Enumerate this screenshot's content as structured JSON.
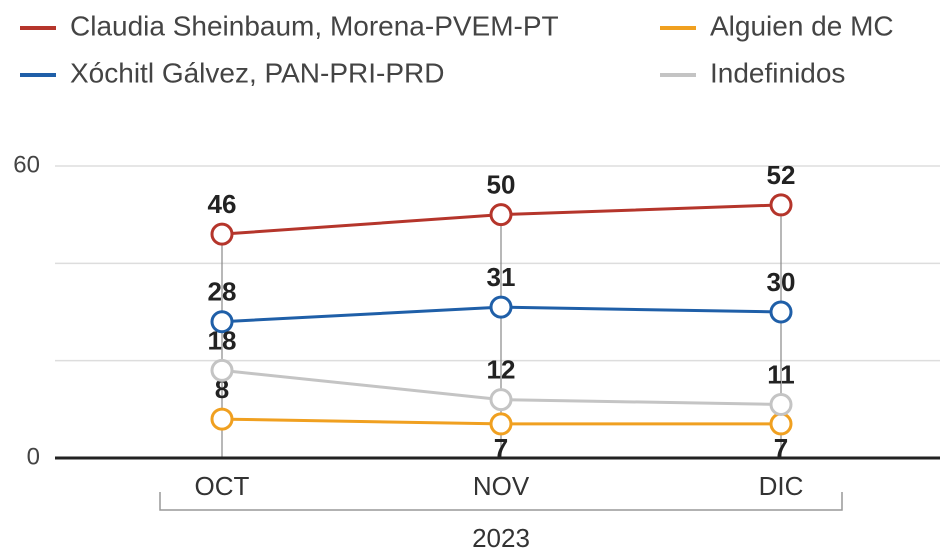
{
  "chart_data": {
    "type": "line",
    "categories": [
      "OCT",
      "NOV",
      "DIC"
    ],
    "xlabel": "2023",
    "series": [
      {
        "name": "Claudia Sheinbaum, Morena-PVEM-PT",
        "color": "#b5352b",
        "values": [
          46,
          50,
          52
        ]
      },
      {
        "name": "Xóchitl Gálvez, PAN-PRI-PRD",
        "color": "#1f5fa8",
        "values": [
          28,
          31,
          30
        ]
      },
      {
        "name": "Alguien de MC",
        "color": "#f0a020",
        "values": [
          8,
          7,
          7
        ]
      },
      {
        "name": "Indefinidos",
        "color": "#c4c4c4",
        "values": [
          18,
          12,
          11
        ]
      }
    ],
    "ylim": [
      0,
      60
    ],
    "yticks": [
      0,
      60
    ],
    "ygrid": [
      20,
      40,
      60
    ]
  }
}
